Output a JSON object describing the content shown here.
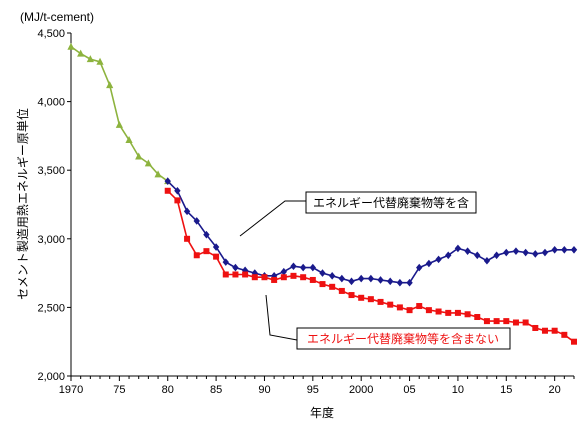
{
  "chart_data": {
    "type": "line",
    "unit_label": "(MJ/t-cement)",
    "xlabel": "年度",
    "ylabel": "セメント製造用熱エネルギー原単位",
    "xlim": [
      1970,
      2022
    ],
    "ylim": [
      2000,
      4500
    ],
    "y_ticks": [
      2000,
      2500,
      3000,
      3500,
      4000,
      4500
    ],
    "y_tick_labels": [
      "2,000",
      "2,500",
      "3,000",
      "3,500",
      "4,000",
      "4,500"
    ],
    "x_ticks": [
      1970,
      1975,
      1980,
      1985,
      1990,
      1995,
      2000,
      2005,
      2010,
      2015,
      2020
    ],
    "x_tick_labels": [
      "1970",
      "75",
      "80",
      "85",
      "90",
      "95",
      "2000",
      "05",
      "10",
      "15",
      "20"
    ],
    "grid": "none",
    "series": [
      {
        "name": "",
        "color": "#8db33e",
        "marker": "triangle",
        "x": [
          1970,
          1971,
          1972,
          1973,
          1974,
          1975,
          1976,
          1977,
          1978,
          1979,
          1980
        ],
        "y": [
          4400,
          4350,
          4310,
          4290,
          4120,
          3830,
          3720,
          3600,
          3550,
          3470,
          3420
        ]
      },
      {
        "name": "エネルギー代替廃棄物等を含",
        "color": "#1a1a8c",
        "marker": "diamond",
        "x": [
          1980,
          1981,
          1982,
          1983,
          1984,
          1985,
          1986,
          1987,
          1988,
          1989,
          1990,
          1991,
          1992,
          1993,
          1994,
          1995,
          1996,
          1997,
          1998,
          1999,
          2000,
          2001,
          2002,
          2003,
          2004,
          2005,
          2006,
          2007,
          2008,
          2009,
          2010,
          2011,
          2012,
          2013,
          2014,
          2015,
          2016,
          2017,
          2018,
          2019,
          2020,
          2021,
          2022
        ],
        "y": [
          3420,
          3350,
          3200,
          3130,
          3030,
          2940,
          2830,
          2790,
          2770,
          2750,
          2730,
          2730,
          2760,
          2800,
          2790,
          2790,
          2750,
          2730,
          2710,
          2690,
          2710,
          2710,
          2700,
          2690,
          2680,
          2680,
          2790,
          2820,
          2850,
          2880,
          2930,
          2910,
          2880,
          2840,
          2880,
          2900,
          2910,
          2900,
          2890,
          2900,
          2920,
          2920,
          2920
        ]
      },
      {
        "name": "エネルギー代替廃棄物等を含まない",
        "color": "#ee1111",
        "marker": "square",
        "x": [
          1980,
          1981,
          1982,
          1983,
          1984,
          1985,
          1986,
          1987,
          1988,
          1989,
          1990,
          1991,
          1992,
          1993,
          1994,
          1995,
          1996,
          1997,
          1998,
          1999,
          2000,
          2001,
          2002,
          2003,
          2004,
          2005,
          2006,
          2007,
          2008,
          2009,
          2010,
          2011,
          2012,
          2013,
          2014,
          2015,
          2016,
          2017,
          2018,
          2019,
          2020,
          2021,
          2022
        ],
        "y": [
          3350,
          3280,
          3000,
          2880,
          2910,
          2870,
          2740,
          2740,
          2740,
          2720,
          2720,
          2700,
          2720,
          2730,
          2720,
          2700,
          2670,
          2650,
          2620,
          2590,
          2570,
          2560,
          2540,
          2520,
          2500,
          2480,
          2510,
          2480,
          2470,
          2460,
          2460,
          2450,
          2430,
          2400,
          2400,
          2400,
          2390,
          2390,
          2350,
          2330,
          2330,
          2300,
          2250
        ]
      }
    ],
    "annotations": [
      {
        "text": "エネルギー代替廃棄物等を含",
        "series": 1,
        "color": "#000000"
      },
      {
        "text": "エネルギー代替廃棄物等を含まない",
        "series": 2,
        "color": "#ee1111"
      }
    ]
  }
}
